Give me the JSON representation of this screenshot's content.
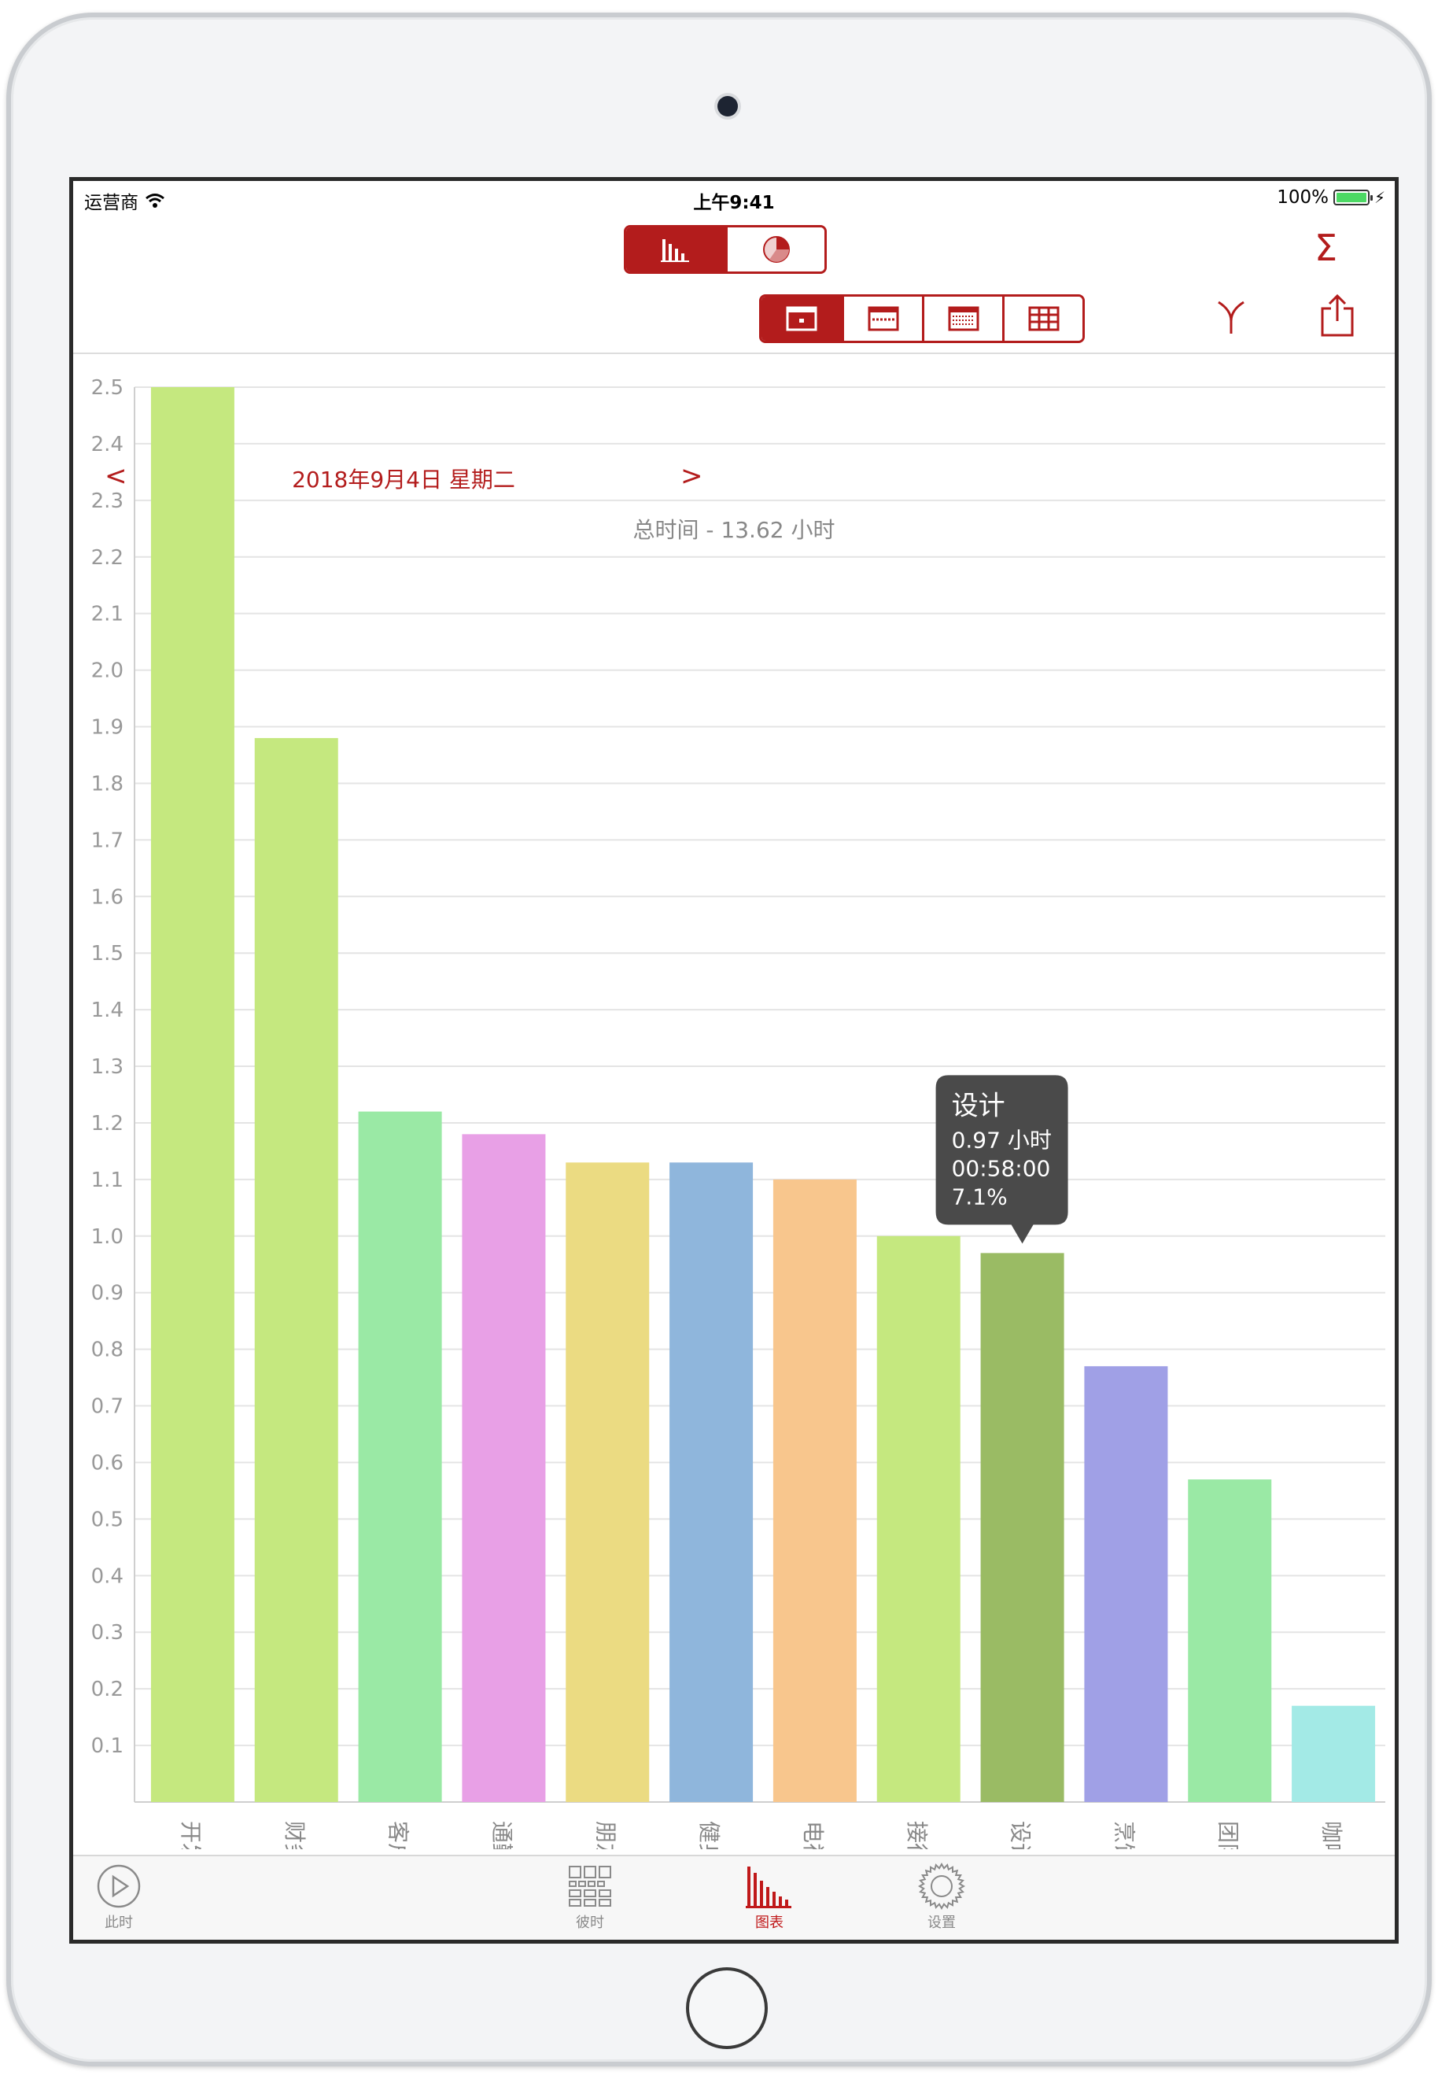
{
  "status_bar": {
    "carrier": "运营商",
    "time": "上午9:41",
    "battery": "100%"
  },
  "toolbar": {
    "view_modes": [
      "bar-chart-icon",
      "pie-chart-icon"
    ],
    "prev": "<",
    "next": ">",
    "date": "2018年9月4日 星期二",
    "ranges": [
      "day-icon",
      "week-icon",
      "month-icon",
      "year-icon"
    ],
    "sum_symbol": "Σ"
  },
  "chart_data": {
    "type": "bar",
    "title": "总时间 - 13.62 小时",
    "categories": [
      "开发",
      "财务",
      "客户",
      "通勤",
      "朋友",
      "健身",
      "电视",
      "接待",
      "设计",
      "烹饪",
      "团队",
      "咖啡"
    ],
    "values": [
      2.5,
      1.88,
      1.22,
      1.18,
      1.13,
      1.13,
      1.1,
      1.0,
      0.97,
      0.77,
      0.57,
      0.17
    ],
    "colors": [
      "#c5e87f",
      "#c5e87f",
      "#9ae9a5",
      "#e8a0e6",
      "#ebdb82",
      "#8fb6dc",
      "#f8c68d",
      "#c5e87f",
      "#9abb64",
      "#a0a0e6",
      "#9ae9a5",
      "#a3eae6"
    ],
    "ylim": [
      0,
      2.5
    ],
    "yticks": [
      "0.1",
      "0.2",
      "0.3",
      "0.4",
      "0.5",
      "0.6",
      "0.7",
      "0.8",
      "0.9",
      "1.0",
      "1.1",
      "1.2",
      "1.3",
      "1.4",
      "1.5",
      "1.6",
      "1.7",
      "1.8",
      "1.9",
      "2.0",
      "2.1",
      "2.2",
      "2.3",
      "2.4",
      "2.5"
    ],
    "grid": true,
    "tooltip": {
      "category": "设计",
      "title": "设计",
      "lines": [
        "0.97 小时",
        "00:58:00",
        "7.1%"
      ]
    }
  },
  "tabbar": {
    "items": [
      {
        "label": "此时",
        "icon": "play-circle-icon"
      },
      {
        "label": "彼时",
        "icon": "grid-icon"
      },
      {
        "label": "图表",
        "icon": "bar-chart-icon"
      },
      {
        "label": "设置",
        "icon": "gear-icon"
      }
    ],
    "active": "图表"
  }
}
